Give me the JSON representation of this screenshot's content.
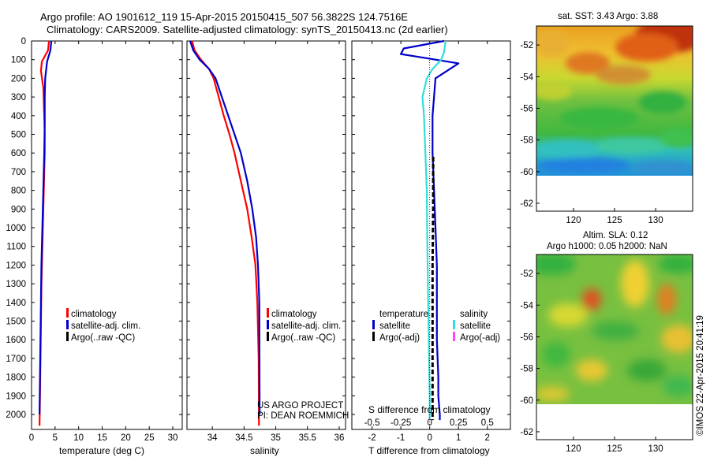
{
  "header": {
    "title_line1": "Argo profile: AO 1901612_119 15-Apr-2015 20150415_507 56.3822S 124.7516E",
    "title_line2": "Climatology: CARS2009. Satellite-adjusted climatology: synTS_20150413.nc (2d earlier)"
  },
  "colors": {
    "climatology": "#ff0000",
    "satellite": "#0000cc",
    "argo": "#000000",
    "sat_salinity": "#33dddd",
    "argo_salinity": "#ff44ff"
  },
  "panels": {
    "temperature": {
      "xlabel": "temperature (deg C)",
      "legend": [
        "climatology",
        "satellite-adj. clim.",
        "Argo(..raw -QC)"
      ]
    },
    "salinity": {
      "xlabel": "salinity",
      "legend": [
        "climatology",
        "satellite-adj. clim.",
        "Argo(..raw -QC)"
      ],
      "credit1": "US ARGO PROJECT",
      "credit2": "PI: DEAN ROEMMICH"
    },
    "difference": {
      "xlabel": "T difference from climatology",
      "toplabel": "S difference from climatology",
      "legend_head_t": "temperature",
      "legend_head_s": "salinity",
      "legend_sat_t": "satellite",
      "legend_argo_t": "Argo(-adj)",
      "legend_sat_s": "satellite",
      "legend_argo_s": "Argo(-adj)"
    },
    "sst_map": {
      "title": "sat. SST: 3.43 Argo: 3.88"
    },
    "sla_map": {
      "title1": "Altim. SLA: 0.12",
      "title2": "Argo h1000: 0.05 h2000: NaN"
    }
  },
  "watermark": "©IMOS 22-Apr-2015 20:41:19",
  "chart_data": [
    {
      "type": "line",
      "title": "",
      "xlabel": "temperature (deg C)",
      "ylabel": "",
      "xlim": [
        0,
        32
      ],
      "ylim": [
        2080,
        0
      ],
      "xticks": [
        0,
        5,
        10,
        15,
        20,
        25,
        30
      ],
      "yticks": [
        0,
        100,
        200,
        300,
        400,
        500,
        600,
        700,
        800,
        900,
        1000,
        1100,
        1200,
        1300,
        1400,
        1500,
        1600,
        1700,
        1800,
        1900,
        2000
      ],
      "series": [
        {
          "name": "climatology",
          "color": "#ff0000",
          "x": [
            3.7,
            3.5,
            2.2,
            2.0,
            2.5,
            2.7,
            2.8,
            2.8,
            2.7,
            2.6,
            2.5,
            2.4,
            2.3,
            2.2,
            2.1,
            2.05,
            2.0,
            1.9,
            1.8,
            1.7
          ],
          "y": [
            0,
            50,
            110,
            160,
            250,
            400,
            500,
            600,
            700,
            800,
            900,
            1000,
            1100,
            1200,
            1300,
            1400,
            1500,
            1700,
            1900,
            2060
          ]
        },
        {
          "name": "satellite-adj. clim.",
          "color": "#0000cc",
          "x": [
            4.2,
            4.0,
            3.3,
            2.9,
            2.8,
            2.8,
            2.7,
            2.6,
            2.5,
            2.4,
            2.3,
            2.2,
            2.1,
            2.05,
            2.0,
            1.9,
            1.8,
            1.7
          ],
          "y": [
            0,
            50,
            110,
            200,
            300,
            450,
            600,
            700,
            800,
            900,
            1000,
            1100,
            1200,
            1300,
            1400,
            1600,
            1800,
            2000
          ]
        }
      ]
    },
    {
      "type": "line",
      "title": "",
      "xlabel": "salinity",
      "ylabel": "",
      "xlim": [
        33.6,
        36.1
      ],
      "ylim": [
        2080,
        0
      ],
      "xticks": [
        34,
        34.5,
        35,
        35.5,
        36
      ],
      "series": [
        {
          "name": "climatology",
          "color": "#ff0000",
          "x": [
            33.68,
            33.72,
            33.82,
            33.95,
            34.02,
            34.1,
            34.18,
            34.27,
            34.35,
            34.45,
            34.55,
            34.62,
            34.68,
            34.71,
            34.73,
            34.735
          ],
          "y": [
            0,
            50,
            100,
            150,
            200,
            300,
            400,
            500,
            600,
            750,
            900,
            1050,
            1200,
            1400,
            1700,
            2060
          ]
        },
        {
          "name": "satellite-adj. clim.",
          "color": "#0000cc",
          "x": [
            33.65,
            33.7,
            33.8,
            33.95,
            34.05,
            34.15,
            34.25,
            34.35,
            34.45,
            34.55,
            34.63,
            34.69,
            34.72,
            34.74,
            34.745
          ],
          "y": [
            0,
            50,
            100,
            150,
            200,
            300,
            400,
            500,
            600,
            750,
            900,
            1050,
            1200,
            1400,
            2000
          ]
        }
      ]
    },
    {
      "type": "line",
      "title": "",
      "xlabel": "T difference from climatology",
      "ylabel": "",
      "xlim": [
        -2.7,
        2.8
      ],
      "ylim": [
        2080,
        0
      ],
      "xticks": [
        -2,
        -1,
        0,
        1,
        2
      ],
      "top_xlabel": "S difference from climatology",
      "top_xticks": [
        "-0.5",
        "-0.25",
        "0",
        "0.25",
        "0.5"
      ],
      "series": [
        {
          "name": "temperature satellite",
          "color": "#0000cc",
          "x": [
            0.5,
            -0.9,
            -1.0,
            -0.2,
            1.0,
            0.7,
            0.2,
            0.15,
            0.1,
            0.1,
            0.15,
            0.2,
            0.25,
            0.25,
            0.25,
            0.3,
            0.3,
            0.35,
            0.35
          ],
          "y": [
            0,
            40,
            70,
            90,
            120,
            150,
            200,
            300,
            400,
            600,
            800,
            1000,
            1200,
            1400,
            1600,
            1800,
            1900,
            2000,
            2030
          ]
        },
        {
          "name": "salinity satellite",
          "color": "#33dddd",
          "x": [
            0.55,
            0.5,
            0.4,
            0.1,
            -0.1,
            -0.25,
            -0.2,
            -0.15,
            -0.1,
            -0.08,
            -0.05,
            -0.02,
            0.0,
            0.0
          ],
          "y": [
            0,
            60,
            100,
            150,
            200,
            300,
            400,
            600,
            800,
            1100,
            1400,
            1700,
            1900,
            2020
          ]
        },
        {
          "name": "temperature Argo(-adj)",
          "color": "#000000",
          "x": [
            0.12,
            0.12,
            0.1,
            0.1,
            0.1,
            0.1
          ],
          "y": [
            620,
            900,
            1200,
            1500,
            1800,
            2030
          ]
        }
      ]
    },
    {
      "type": "heatmap",
      "title": "sat. SST: 3.43 Argo: 3.88",
      "xticks": [
        120,
        125,
        130
      ],
      "yticks": [
        -52,
        -54,
        -56,
        -58,
        -60,
        -62
      ],
      "xlim": [
        115.5,
        134.5
      ],
      "ylim": [
        -62.5,
        -50.8
      ]
    },
    {
      "type": "heatmap",
      "title": "Altim. SLA: 0.12",
      "subtitle": "Argo h1000: 0.05 h2000: NaN",
      "xticks": [
        120,
        125,
        130
      ],
      "yticks": [
        -52,
        -54,
        -56,
        -58,
        -60,
        -62
      ],
      "xlim": [
        115.5,
        134.5
      ],
      "ylim": [
        -62.5,
        -50.8
      ]
    }
  ]
}
